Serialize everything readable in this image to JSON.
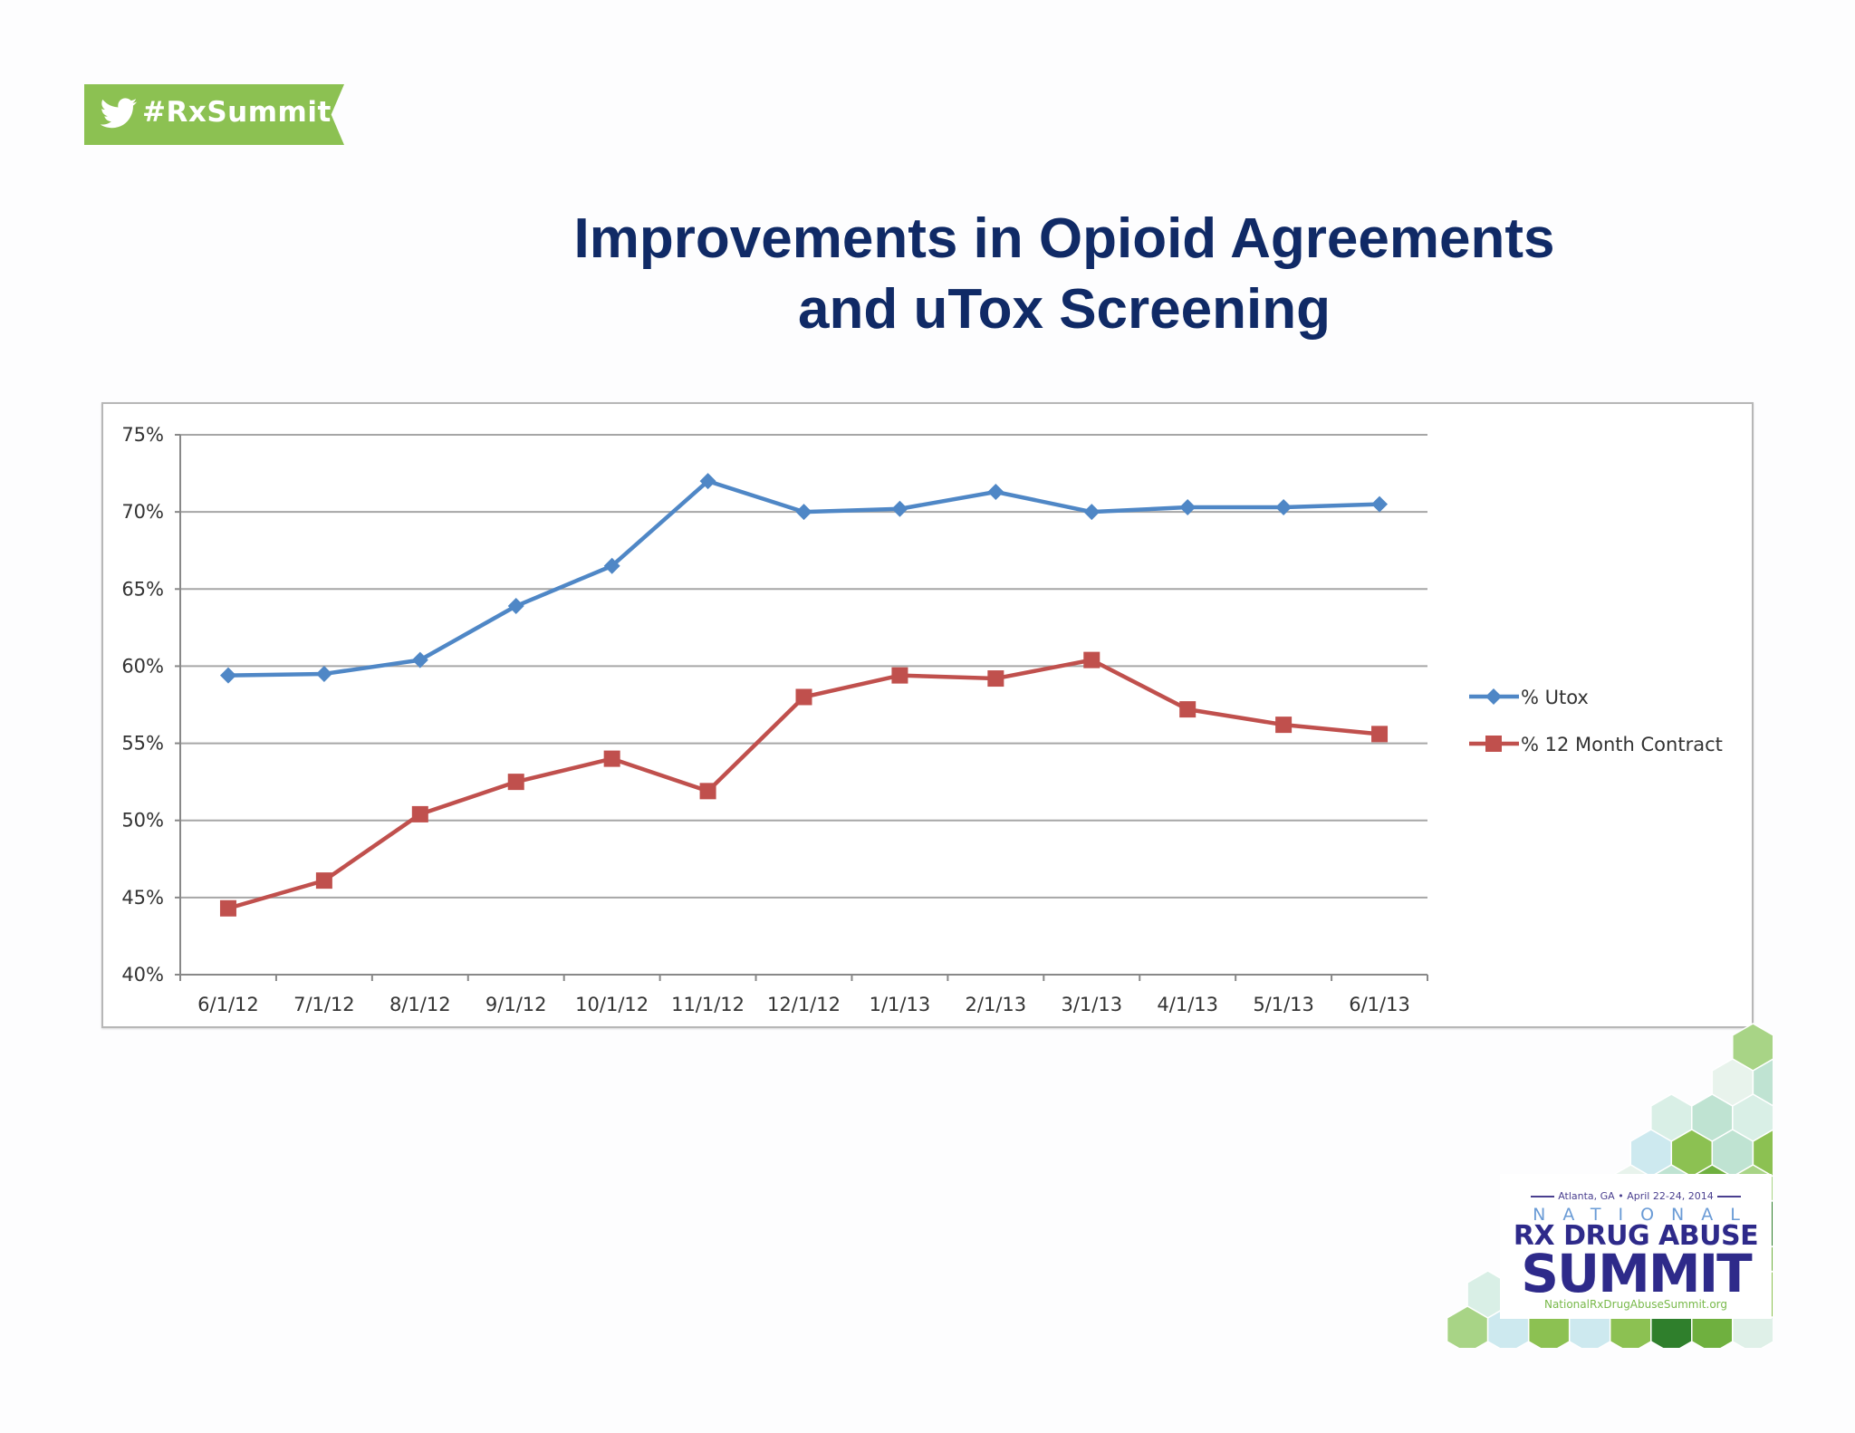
{
  "badge": {
    "text": "#RxSummit",
    "icon": "twitter-bird-icon",
    "color": "#8cc152"
  },
  "title": {
    "line1": "Improvements in Opioid Agreements",
    "line2": "and uTox Screening"
  },
  "logo": {
    "date": "Atlanta, GA • April 22-24, 2014",
    "national": "NATIONAL",
    "line1": "RX DRUG ABUSE",
    "line2": "SUMMIT",
    "url": "NationalRxDrugAbuseSummit.org"
  },
  "chart_data": {
    "type": "line",
    "title": "",
    "xlabel": "",
    "ylabel": "",
    "categories": [
      "6/1/12",
      "7/1/12",
      "8/1/12",
      "9/1/12",
      "10/1/12",
      "11/1/12",
      "12/1/12",
      "1/1/13",
      "2/1/13",
      "3/1/13",
      "4/1/13",
      "5/1/13",
      "6/1/13"
    ],
    "y_ticks": [
      "40%",
      "45%",
      "50%",
      "55%",
      "60%",
      "65%",
      "70%",
      "75%"
    ],
    "ylim": [
      40,
      75
    ],
    "grid": true,
    "legend_position": "right",
    "series": [
      {
        "name": "% Utox",
        "color": "#4f87c6",
        "marker": "diamond",
        "values": [
          59.4,
          59.5,
          60.4,
          63.9,
          66.5,
          72.0,
          70.0,
          70.2,
          71.3,
          70.0,
          70.3,
          70.3,
          70.5
        ]
      },
      {
        "name": "% 12 Month Contract",
        "color": "#c0504d",
        "marker": "square",
        "values": [
          44.3,
          46.1,
          50.4,
          52.5,
          54.0,
          51.9,
          58.0,
          59.4,
          59.2,
          60.4,
          57.2,
          56.2,
          55.6
        ]
      }
    ]
  }
}
